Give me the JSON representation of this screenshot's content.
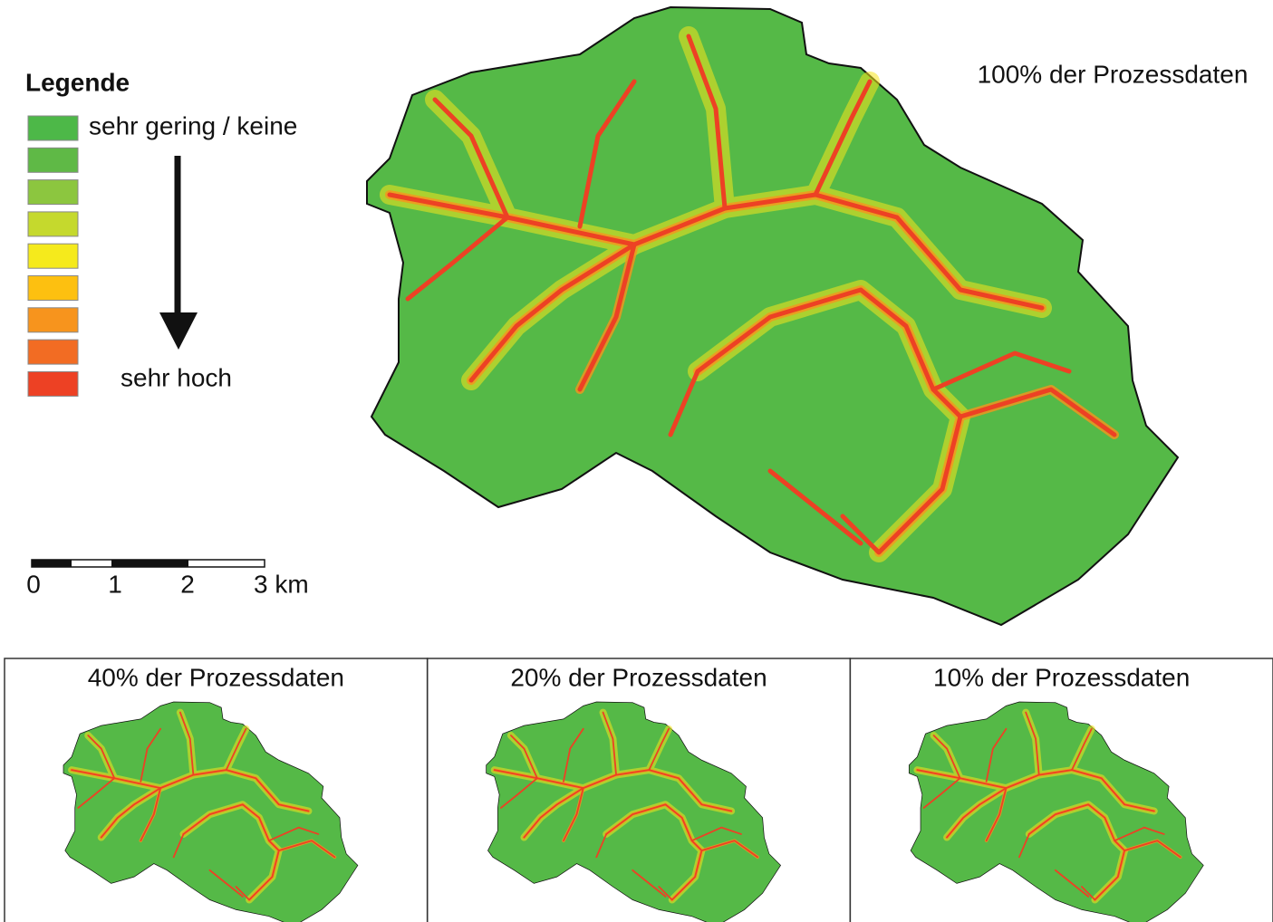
{
  "legend": {
    "title": "Legende",
    "low_label": "sehr gering / keine",
    "high_label": "sehr hoch",
    "colors": [
      "#4db848",
      "#5fb946",
      "#8cc63f",
      "#c5d92d",
      "#f5ea1c",
      "#fdc010",
      "#f7941d",
      "#f26c23",
      "#ed4124"
    ]
  },
  "scale_bar": {
    "labels": [
      "0",
      "1",
      "2",
      "3 km"
    ]
  },
  "main_map": {
    "title": "100% der Prozessdaten"
  },
  "panels": [
    {
      "title": "40% der Prozessdaten"
    },
    {
      "title": "20% der Prozessdaten"
    },
    {
      "title": "10% der Prozessdaten"
    }
  ]
}
